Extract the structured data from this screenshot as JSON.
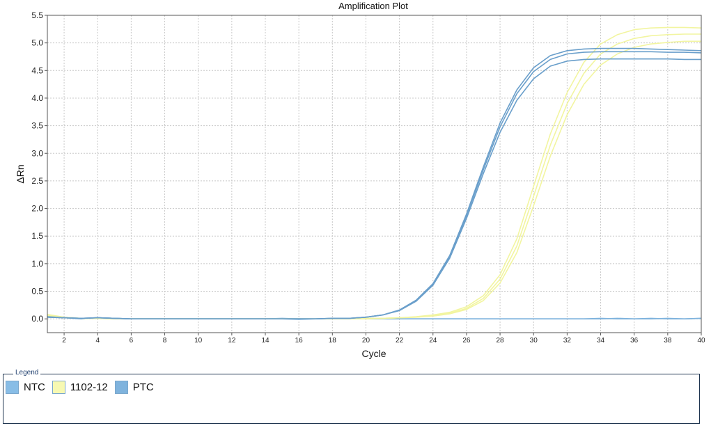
{
  "chart_data": {
    "type": "line",
    "title": "Amplification Plot",
    "xlabel": "Cycle",
    "ylabel": "ΔRn",
    "xlim": [
      1,
      40
    ],
    "ylim": [
      -0.25,
      5.5
    ],
    "x_ticks": [
      "2",
      "4",
      "6",
      "8",
      "10",
      "12",
      "14",
      "16",
      "18",
      "20",
      "22",
      "24",
      "26",
      "28",
      "30",
      "32",
      "34",
      "36",
      "38",
      "40"
    ],
    "y_ticks": [
      "0.0",
      "0.5",
      "1.0",
      "1.5",
      "2.0",
      "2.5",
      "3.0",
      "3.5",
      "4.0",
      "4.5",
      "5.0",
      "5.5"
    ],
    "grid": true,
    "x": [
      1,
      2,
      3,
      4,
      5,
      6,
      7,
      8,
      9,
      10,
      11,
      12,
      13,
      14,
      15,
      16,
      17,
      18,
      19,
      20,
      21,
      22,
      23,
      24,
      25,
      26,
      27,
      28,
      29,
      30,
      31,
      32,
      33,
      34,
      35,
      36,
      37,
      38,
      39,
      40
    ],
    "series": [
      {
        "name": "NTC",
        "color": "#7fb3dd",
        "values": [
          0.05,
          0.02,
          0.01,
          0.02,
          0.01,
          0.0,
          0.0,
          0.0,
          0.0,
          0.0,
          0.0,
          0.0,
          0.0,
          0.0,
          0.0,
          -0.01,
          0.0,
          0.0,
          0.0,
          0.0,
          0.0,
          0.0,
          0.0,
          0.0,
          0.0,
          0.0,
          0.0,
          0.0,
          0.0,
          0.0,
          0.0,
          0.0,
          0.0,
          0.0,
          0.01,
          0.0,
          0.0,
          0.01,
          0.0,
          0.01
        ]
      },
      {
        "name": "NTC",
        "color": "#7fb3dd",
        "values": [
          0.03,
          0.02,
          0.0,
          0.02,
          0.01,
          0.0,
          0.0,
          0.0,
          0.0,
          0.0,
          0.0,
          0.0,
          0.0,
          0.0,
          0.01,
          0.0,
          0.0,
          0.0,
          0.0,
          0.0,
          0.0,
          0.0,
          0.0,
          0.0,
          0.0,
          0.0,
          0.0,
          0.0,
          0.0,
          0.0,
          0.0,
          0.0,
          0.0,
          0.01,
          0.0,
          0.0,
          0.01,
          0.0,
          0.0,
          0.01
        ]
      },
      {
        "name": "1102-12",
        "color": "#f2f5a0",
        "values": [
          0.08,
          0.03,
          0.01,
          0.01,
          0.0,
          0.0,
          0.0,
          0.0,
          0.0,
          0.0,
          0.0,
          0.0,
          0.0,
          0.0,
          0.0,
          0.0,
          0.0,
          0.0,
          0.0,
          0.01,
          0.01,
          0.02,
          0.04,
          0.07,
          0.12,
          0.22,
          0.42,
          0.8,
          1.45,
          2.4,
          3.35,
          4.1,
          4.65,
          4.98,
          5.15,
          5.24,
          5.27,
          5.28,
          5.28,
          5.27
        ]
      },
      {
        "name": "1102-12",
        "color": "#f2f5a0",
        "values": [
          0.07,
          0.03,
          0.01,
          0.01,
          0.0,
          0.0,
          0.0,
          0.0,
          0.0,
          0.0,
          0.0,
          0.0,
          0.0,
          0.0,
          0.0,
          0.0,
          0.0,
          0.0,
          0.0,
          0.01,
          0.01,
          0.02,
          0.03,
          0.06,
          0.1,
          0.19,
          0.37,
          0.72,
          1.32,
          2.22,
          3.15,
          3.9,
          4.45,
          4.8,
          4.98,
          5.08,
          5.13,
          5.15,
          5.16,
          5.16
        ]
      },
      {
        "name": "1102-12",
        "color": "#f2f5a0",
        "values": [
          0.06,
          0.02,
          0.01,
          0.01,
          0.0,
          0.0,
          0.0,
          0.0,
          0.0,
          0.0,
          0.0,
          0.0,
          0.0,
          0.0,
          0.0,
          0.0,
          0.0,
          0.0,
          0.0,
          0.0,
          0.01,
          0.02,
          0.03,
          0.05,
          0.09,
          0.17,
          0.33,
          0.65,
          1.2,
          2.05,
          2.95,
          3.7,
          4.25,
          4.6,
          4.8,
          4.92,
          4.98,
          5.01,
          5.03,
          5.03
        ]
      },
      {
        "name": "PTC",
        "color": "#6a9fcb",
        "values": [
          0.04,
          0.02,
          0.01,
          0.02,
          0.01,
          0.0,
          0.0,
          0.0,
          0.0,
          0.0,
          0.0,
          0.0,
          0.0,
          0.0,
          0.0,
          0.0,
          0.0,
          0.01,
          0.01,
          0.03,
          0.07,
          0.16,
          0.34,
          0.64,
          1.15,
          1.9,
          2.75,
          3.55,
          4.15,
          4.55,
          4.77,
          4.86,
          4.89,
          4.9,
          4.9,
          4.9,
          4.89,
          4.88,
          4.87,
          4.86
        ]
      },
      {
        "name": "PTC",
        "color": "#6a9fcb",
        "values": [
          0.03,
          0.02,
          0.01,
          0.02,
          0.01,
          0.0,
          0.0,
          0.0,
          0.0,
          0.0,
          0.0,
          0.0,
          0.0,
          0.0,
          0.0,
          0.0,
          0.0,
          0.01,
          0.01,
          0.03,
          0.07,
          0.16,
          0.33,
          0.63,
          1.13,
          1.87,
          2.7,
          3.48,
          4.08,
          4.48,
          4.7,
          4.8,
          4.83,
          4.84,
          4.84,
          4.84,
          4.84,
          4.83,
          4.83,
          4.82
        ]
      },
      {
        "name": "PTC",
        "color": "#6a9fcb",
        "values": [
          0.03,
          0.02,
          0.01,
          0.02,
          0.01,
          0.0,
          0.0,
          0.0,
          0.0,
          0.0,
          0.0,
          0.0,
          0.0,
          0.0,
          0.0,
          0.0,
          0.0,
          0.01,
          0.01,
          0.03,
          0.07,
          0.15,
          0.32,
          0.61,
          1.1,
          1.82,
          2.63,
          3.38,
          3.96,
          4.35,
          4.58,
          4.67,
          4.7,
          4.71,
          4.71,
          4.71,
          4.71,
          4.71,
          4.7,
          4.7
        ]
      }
    ]
  },
  "legend": {
    "caption": "Legend",
    "items": [
      {
        "label": "NTC",
        "color": "#88bde6"
      },
      {
        "label": "1102-12",
        "color": "#f7f9b2"
      },
      {
        "label": "PTC",
        "color": "#7fb3dd"
      }
    ]
  }
}
